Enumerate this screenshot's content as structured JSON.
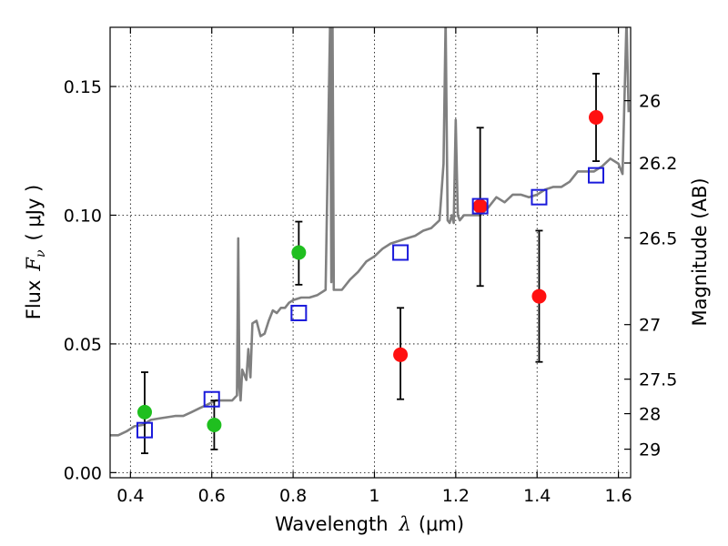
{
  "chart_data": {
    "type": "scatter",
    "title": "",
    "xlabel_text": "Wavelength",
    "xlabel_symbol": "λ",
    "xlabel_unit": "(μm)",
    "ylabel_text": "Flux",
    "ylabel_symbol": "F",
    "ylabel_subscript": "ν",
    "ylabel_unit": "( μJy )",
    "right_ylabel": "Magnitude (AB)",
    "xlim": [
      0.35,
      1.63
    ],
    "ylim": [
      -0.002,
      0.173
    ],
    "x_ticks": [
      0.4,
      0.6,
      0.8,
      1.0,
      1.2,
      1.4,
      1.6
    ],
    "x_tick_labels": [
      "0.4",
      "0.6",
      "0.8",
      "1",
      "1.2",
      "1.4",
      "1.6"
    ],
    "y_ticks": [
      0.0,
      0.05,
      0.1,
      0.15
    ],
    "y_tick_labels": [
      "0.00",
      "0.05",
      "0.10",
      "0.15"
    ],
    "right_ticks": [
      {
        "label": "26",
        "flux": 0.1445
      },
      {
        "label": "26.2",
        "flux": 0.1203
      },
      {
        "label": "26.5",
        "flux": 0.0912
      },
      {
        "label": "27",
        "flux": 0.0575
      },
      {
        "label": "27.5",
        "flux": 0.0363
      },
      {
        "label": "28",
        "flux": 0.0229
      },
      {
        "label": "29",
        "flux": 0.0091
      }
    ],
    "grid": true,
    "colors": {
      "template": "#808080",
      "green_points": "#1fbf1f",
      "red_points": "#ff1010",
      "model_squares": "#1a1adb",
      "errorbar": "#000000"
    },
    "series": [
      {
        "name": "green-photometry",
        "marker": "circle",
        "color": "#1fbf1f",
        "points": [
          {
            "x": 0.435,
            "y": 0.0235,
            "ylo": 0.0075,
            "yhi": 0.039
          },
          {
            "x": 0.606,
            "y": 0.0185,
            "ylo": 0.009,
            "yhi": 0.028
          },
          {
            "x": 0.814,
            "y": 0.0855,
            "ylo": 0.073,
            "yhi": 0.0975
          }
        ]
      },
      {
        "name": "red-photometry",
        "marker": "circle",
        "color": "#ff1010",
        "points": [
          {
            "x": 1.064,
            "y": 0.0458,
            "ylo": 0.0285,
            "yhi": 0.064
          },
          {
            "x": 1.26,
            "y": 0.1035,
            "ylo": 0.0725,
            "yhi": 0.134
          },
          {
            "x": 1.405,
            "y": 0.0685,
            "ylo": 0.043,
            "yhi": 0.094
          },
          {
            "x": 1.545,
            "y": 0.138,
            "ylo": 0.121,
            "yhi": 0.155
          }
        ]
      },
      {
        "name": "model-bandpass",
        "marker": "square",
        "color": "#1a1adb",
        "points": [
          {
            "x": 0.435,
            "y": 0.0165
          },
          {
            "x": 0.6,
            "y": 0.0285
          },
          {
            "x": 0.814,
            "y": 0.062
          },
          {
            "x": 1.064,
            "y": 0.0855
          },
          {
            "x": 1.26,
            "y": 0.1035
          },
          {
            "x": 1.405,
            "y": 0.107
          },
          {
            "x": 1.545,
            "y": 0.1155
          }
        ]
      }
    ],
    "template_spectrum": {
      "name": "galaxy-template",
      "color": "#808080",
      "x": [
        0.35,
        0.37,
        0.39,
        0.41,
        0.43,
        0.45,
        0.47,
        0.49,
        0.51,
        0.53,
        0.55,
        0.57,
        0.59,
        0.61,
        0.63,
        0.65,
        0.662,
        0.665,
        0.668,
        0.671,
        0.675,
        0.685,
        0.69,
        0.695,
        0.7,
        0.71,
        0.72,
        0.73,
        0.74,
        0.75,
        0.76,
        0.77,
        0.78,
        0.79,
        0.8,
        0.82,
        0.84,
        0.86,
        0.88,
        0.891,
        0.894,
        0.897,
        0.9,
        0.92,
        0.94,
        0.96,
        0.98,
        1.0,
        1.02,
        1.04,
        1.06,
        1.08,
        1.1,
        1.12,
        1.14,
        1.16,
        1.17,
        1.175,
        1.18,
        1.185,
        1.19,
        1.195,
        1.2,
        1.205,
        1.21,
        1.22,
        1.24,
        1.26,
        1.28,
        1.3,
        1.32,
        1.34,
        1.36,
        1.38,
        1.4,
        1.42,
        1.44,
        1.46,
        1.48,
        1.5,
        1.52,
        1.54,
        1.56,
        1.58,
        1.6,
        1.61,
        1.62,
        1.625
      ],
      "y": [
        0.0145,
        0.0145,
        0.016,
        0.018,
        0.0185,
        0.0205,
        0.021,
        0.0215,
        0.022,
        0.022,
        0.0235,
        0.025,
        0.0265,
        0.028,
        0.028,
        0.028,
        0.03,
        0.091,
        0.033,
        0.028,
        0.04,
        0.036,
        0.048,
        0.037,
        0.058,
        0.059,
        0.053,
        0.054,
        0.059,
        0.063,
        0.062,
        0.064,
        0.064,
        0.066,
        0.067,
        0.068,
        0.068,
        0.069,
        0.071,
        0.176,
        0.074,
        0.176,
        0.071,
        0.071,
        0.075,
        0.078,
        0.082,
        0.084,
        0.087,
        0.089,
        0.09,
        0.091,
        0.092,
        0.094,
        0.095,
        0.098,
        0.12,
        0.176,
        0.098,
        0.097,
        0.1,
        0.097,
        0.137,
        0.1,
        0.098,
        0.1,
        0.1,
        0.1,
        0.103,
        0.107,
        0.105,
        0.108,
        0.108,
        0.107,
        0.108,
        0.11,
        0.111,
        0.111,
        0.113,
        0.117,
        0.117,
        0.117,
        0.119,
        0.122,
        0.12,
        0.116,
        0.176,
        0.14
      ]
    }
  }
}
